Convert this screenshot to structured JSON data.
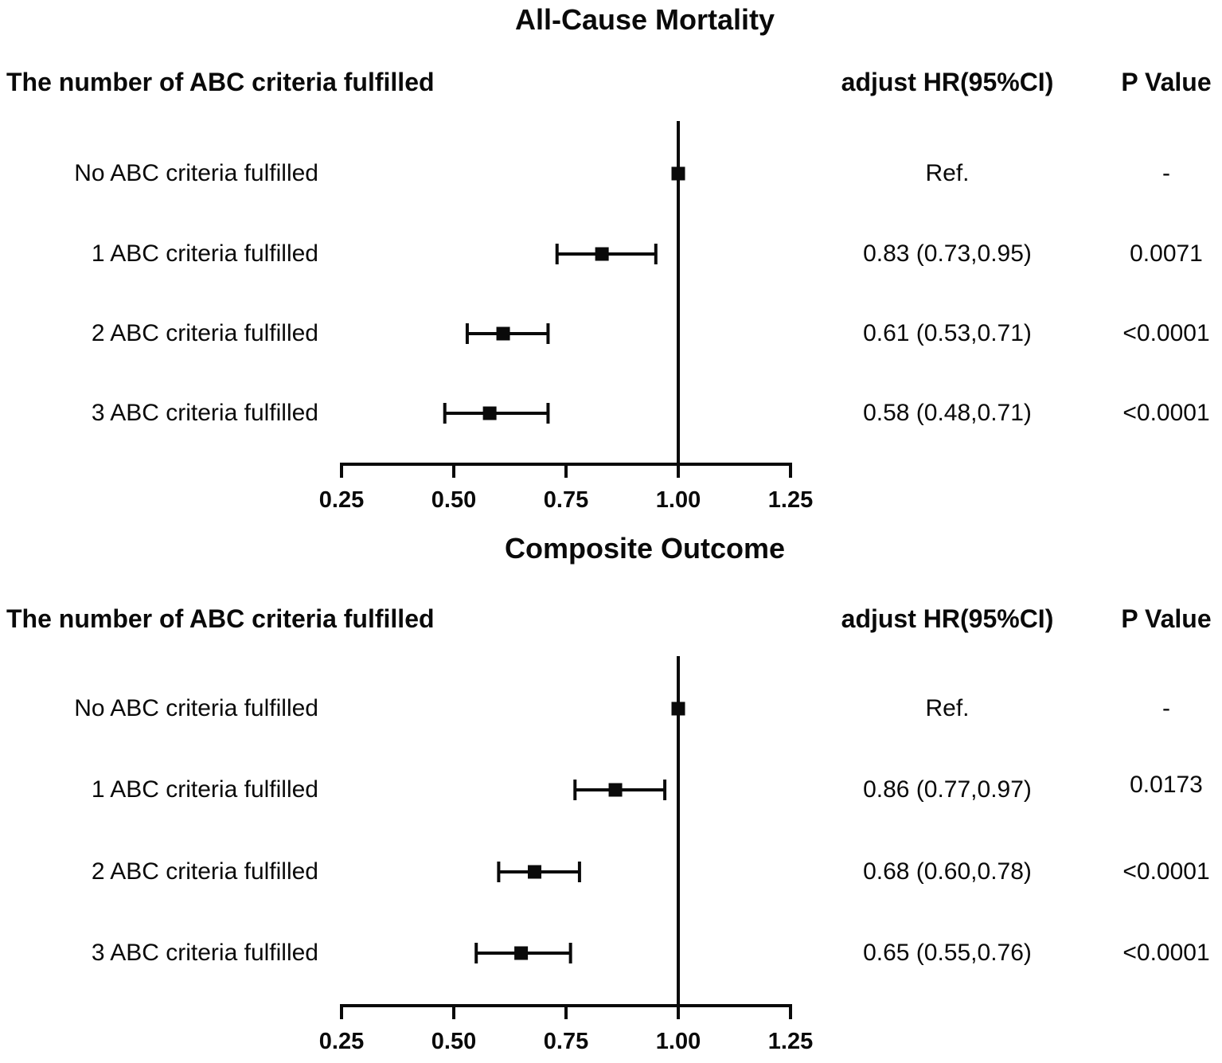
{
  "page": {
    "background_color": "#ffffff",
    "ink_color": "#0a0a0a"
  },
  "chart_data": [
    {
      "type": "forest",
      "title": "All-Cause Mortality",
      "left_header": "The number of ABC criteria fulfilled",
      "columns": [
        "adjust HR(95%CI)",
        "P Value"
      ],
      "xlim": [
        0.25,
        1.25
      ],
      "x_ticks": [
        0.25,
        0.5,
        0.75,
        1.0,
        1.25
      ],
      "x_tick_labels": [
        "0.25",
        "0.50",
        "0.75",
        "1.00",
        "1.25"
      ],
      "reference_line": 1.0,
      "rows": [
        {
          "label": "No ABC criteria fulfilled",
          "estimate": 1.0,
          "ci_low": null,
          "ci_high": null,
          "hr_text": "Ref.",
          "p_text": "-",
          "is_reference": true
        },
        {
          "label": "1 ABC criteria fulfilled",
          "estimate": 0.83,
          "ci_low": 0.73,
          "ci_high": 0.95,
          "hr_text": "0.83 (0.73,0.95)",
          "p_text": "0.0071",
          "is_reference": false
        },
        {
          "label": "2 ABC criteria fulfilled",
          "estimate": 0.61,
          "ci_low": 0.53,
          "ci_high": 0.71,
          "hr_text": "0.61 (0.53,0.71)",
          "p_text": "<0.0001",
          "is_reference": false
        },
        {
          "label": "3 ABC criteria fulfilled",
          "estimate": 0.58,
          "ci_low": 0.48,
          "ci_high": 0.71,
          "hr_text": "0.58 (0.48,0.71)",
          "p_text": "<0.0001",
          "is_reference": false
        }
      ]
    },
    {
      "type": "forest",
      "title": "Composite Outcome",
      "left_header": "The number of ABC criteria fulfilled",
      "columns": [
        "adjust HR(95%CI)",
        "P Value"
      ],
      "xlim": [
        0.25,
        1.25
      ],
      "x_ticks": [
        0.25,
        0.5,
        0.75,
        1.0,
        1.25
      ],
      "x_tick_labels": [
        "0.25",
        "0.50",
        "0.75",
        "1.00",
        "1.25"
      ],
      "reference_line": 1.0,
      "rows": [
        {
          "label": "No ABC criteria fulfilled",
          "estimate": 1.0,
          "ci_low": null,
          "ci_high": null,
          "hr_text": "Ref.",
          "p_text": "-",
          "is_reference": true
        },
        {
          "label": "1 ABC criteria fulfilled",
          "estimate": 0.86,
          "ci_low": 0.77,
          "ci_high": 0.97,
          "hr_text": "0.86 (0.77,0.97)",
          "p_text": "0.0173",
          "is_reference": false
        },
        {
          "label": "2 ABC criteria fulfilled",
          "estimate": 0.68,
          "ci_low": 0.6,
          "ci_high": 0.78,
          "hr_text": "0.68 (0.60,0.78)",
          "p_text": "<0.0001",
          "is_reference": false
        },
        {
          "label": "3 ABC criteria fulfilled",
          "estimate": 0.65,
          "ci_low": 0.55,
          "ci_high": 0.76,
          "hr_text": "0.65 (0.55,0.76)",
          "p_text": "<0.0001",
          "is_reference": false
        }
      ]
    }
  ]
}
